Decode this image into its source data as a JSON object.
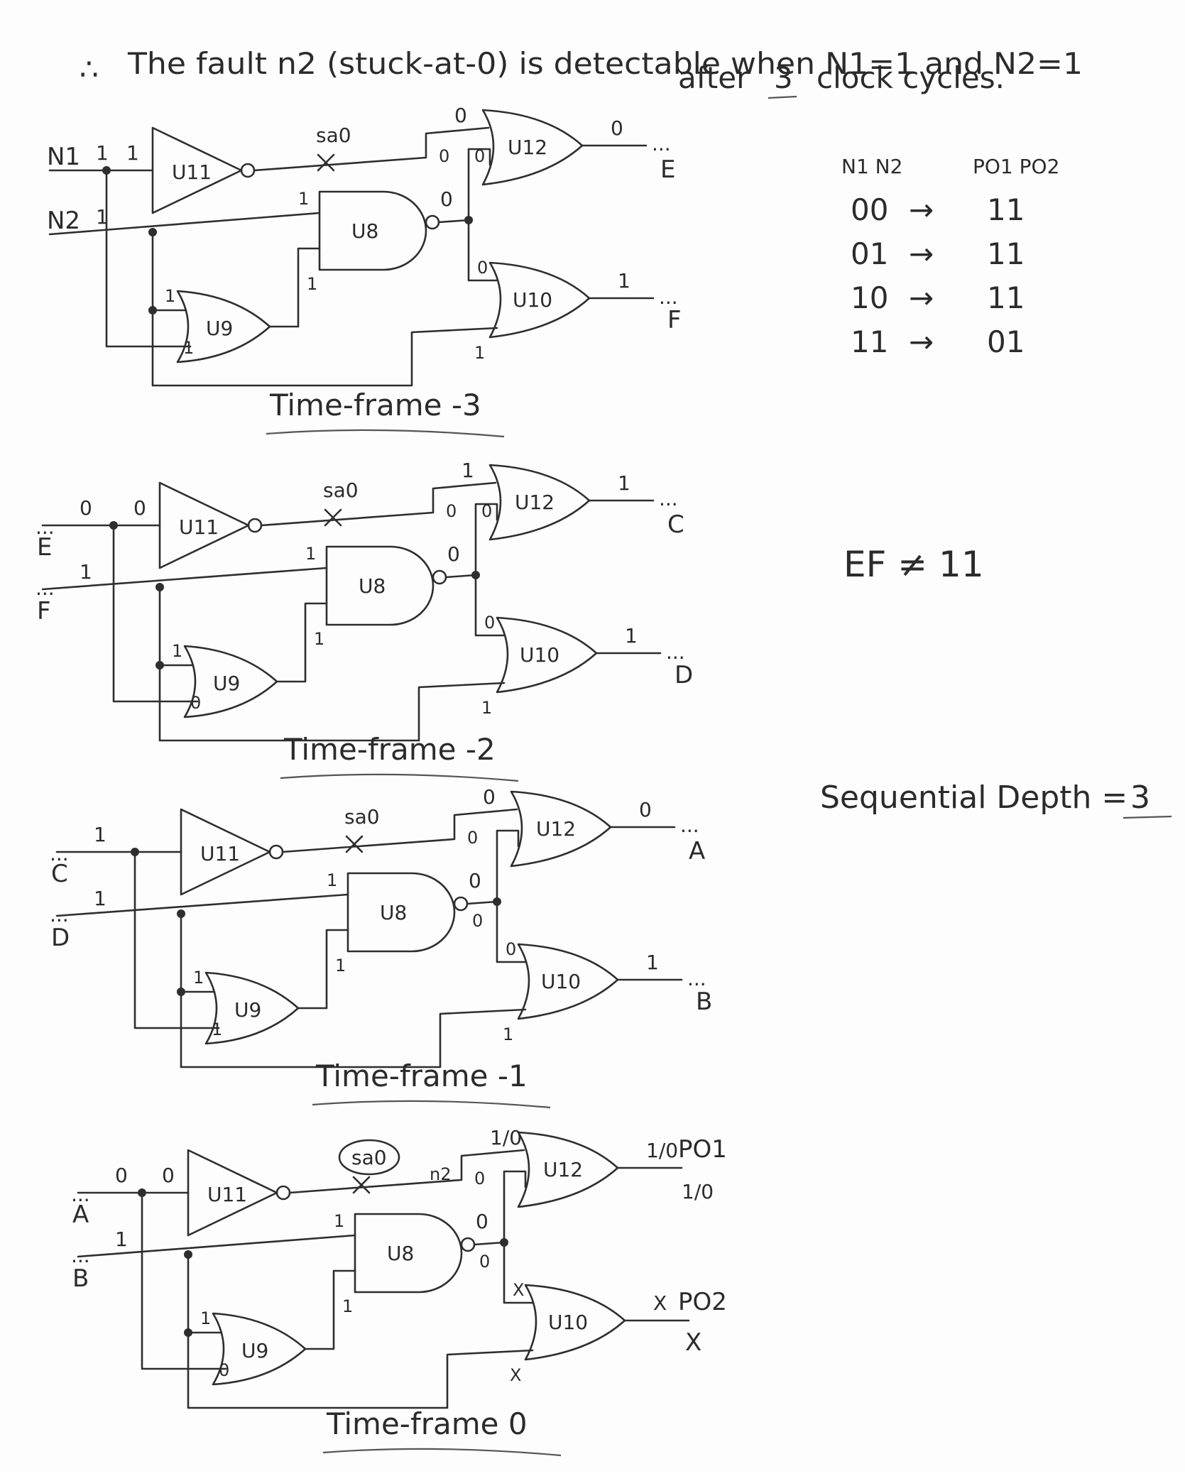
{
  "header": {
    "therefore": "∴",
    "line1": "The fault n2 (stuck-at-0) is detectable when N1=1 and N2=1",
    "line2_prefix": "after",
    "line2_number": "3",
    "line2_suffix": "clock cycles."
  },
  "gate_labels": {
    "u11": "U11",
    "u8": "U8",
    "u9": "U9",
    "u12": "U12",
    "u10": "U10"
  },
  "fault_marker": "sa0",
  "fault_net": "n2",
  "continuation": "...",
  "frames": [
    {
      "title": "Time-frame -3",
      "in1_name": "N1",
      "in1_value": "1",
      "in2_name": "N2",
      "in2_value": "1",
      "u11_in": "1",
      "u11_out": "",
      "u12_in_top": "0",
      "u12_in_mid": "0",
      "u12_in_low": "0",
      "u8_in_top": "1",
      "u8_in_low": "1",
      "u8_out": "0",
      "u9_in_top": "1",
      "u9_in_low": "1",
      "u10_in_top": "0",
      "u10_in_low": "1",
      "out1_value": "0",
      "out1_name": "E",
      "out2_value": "1",
      "out2_name": "F"
    },
    {
      "title": "Time-frame -2",
      "in1_name": "E",
      "in1_value": "0",
      "in2_name": "F",
      "in2_value": "1",
      "u11_in": "0",
      "u12_in_top": "1",
      "u12_in_mid": "0",
      "u12_in_low": "0",
      "u8_in_top": "1",
      "u8_in_low": "1",
      "u8_out": "0",
      "u9_in_top": "1",
      "u9_in_low": "0",
      "u10_in_top": "0",
      "u10_in_low": "1",
      "out1_value": "1",
      "out1_name": "C",
      "out2_value": "1",
      "out2_name": "D"
    },
    {
      "title": "Time-frame -1",
      "in1_name": "C",
      "in1_value": "1",
      "in2_name": "D",
      "in2_value": "1",
      "u11_in": "",
      "u12_in_top": "0",
      "u12_in_mid": "0",
      "u12_in_low": "",
      "u8_in_top": "1",
      "u8_in_low": "1",
      "u8_out": "0",
      "u8_out_b": "0",
      "u9_in_top": "1",
      "u9_in_low": "1",
      "u10_in_top": "0",
      "u10_in_low": "1",
      "out1_value": "0",
      "out1_name": "A",
      "out2_value": "1",
      "out2_name": "B"
    },
    {
      "title": "Time-frame 0",
      "in1_name": "A",
      "in1_value": "0",
      "in2_name": "B",
      "in2_value": "1",
      "u11_in": "0",
      "u12_in_top": "1/0",
      "u12_in_mid": "0",
      "u12_in_low": "",
      "u8_in_top": "1",
      "u8_in_low": "1",
      "u8_out": "0",
      "u8_out_b": "0",
      "u9_in_top": "1",
      "u9_in_low": "0",
      "u10_in_top": "X",
      "u10_in_low": "X",
      "out1_value": "1/0",
      "out1_name": "PO1",
      "out2_value": "X",
      "out2_name": "PO2"
    }
  ],
  "truth_table": {
    "header_in": "N1 N2",
    "header_out": "PO1 PO2",
    "arrow": "→",
    "rows": [
      {
        "in": "00",
        "out": "11"
      },
      {
        "in": "01",
        "out": "11"
      },
      {
        "in": "10",
        "out": "11"
      },
      {
        "in": "11",
        "out": "01"
      }
    ]
  },
  "ef_note": "EF ≠ 11",
  "sequential_depth": {
    "label": "Sequential Depth =",
    "value": "3"
  }
}
